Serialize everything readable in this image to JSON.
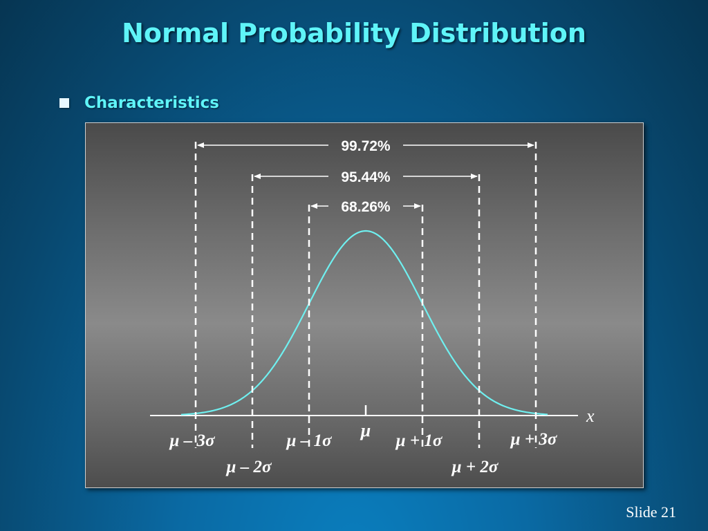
{
  "slide": {
    "title": "Normal Probability Distribution",
    "bullet": "Characteristics",
    "footer": "Slide 21"
  },
  "diagram": {
    "curve_color": "#6ff0f0",
    "text_color": "#ffffff",
    "axis_label": "x",
    "mean_label": "μ",
    "intervals": [
      {
        "k": 1,
        "percent": "68.26%"
      },
      {
        "k": 2,
        "percent": "95.44%"
      },
      {
        "k": 3,
        "percent": "99.72%"
      }
    ],
    "sigma_labels": [
      {
        "k": -3,
        "text": "μ – 3σ"
      },
      {
        "k": -2,
        "text": "μ – 2σ"
      },
      {
        "k": -1,
        "text": "μ – 1σ"
      },
      {
        "k": 1,
        "text": "μ + 1σ"
      },
      {
        "k": 2,
        "text": "μ + 2σ"
      },
      {
        "k": 3,
        "text": "μ + 3σ"
      }
    ]
  }
}
